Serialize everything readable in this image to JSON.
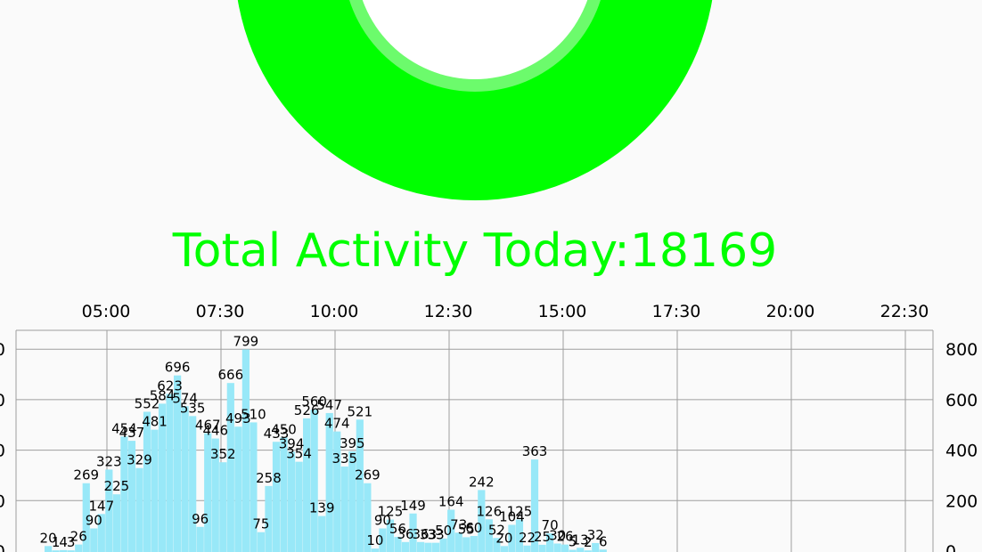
{
  "theme": {
    "accent": "#00ff00",
    "ring_inner": "#6cfb6c",
    "bar_color": "#98e8f8",
    "grid_color": "#9e9e9e"
  },
  "activity": {
    "label": "Total Activity Today:",
    "total": "18169"
  },
  "chart_data": {
    "type": "bar",
    "title": "",
    "xlabel": "",
    "ylabel": "",
    "x_axis_position": "top",
    "y_axes": "left and right",
    "grid": true,
    "ylim": [
      0,
      850
    ],
    "y_ticks": [
      0,
      200,
      400,
      600,
      800
    ],
    "x_ticks": [
      "05:00",
      "07:30",
      "10:00",
      "12:30",
      "15:00",
      "17:30",
      "20:00",
      "22:30"
    ],
    "interval_minutes": 15,
    "values": [
      20,
      1,
      4,
      3,
      26,
      269,
      90,
      147,
      323,
      225,
      454,
      437,
      329,
      552,
      481,
      584,
      623,
      696,
      574,
      535,
      96,
      467,
      446,
      352,
      666,
      493,
      799,
      510,
      75,
      258,
      433,
      450,
      394,
      354,
      526,
      560,
      139,
      547,
      474,
      335,
      395,
      521,
      269,
      10,
      90,
      125,
      56,
      36,
      149,
      36,
      33,
      33,
      50,
      164,
      73,
      55,
      60,
      242,
      126,
      52,
      20,
      104,
      125,
      22,
      363,
      25,
      70,
      30,
      26,
      5,
      13,
      2,
      32,
      6
    ],
    "labels": [
      "20",
      "1",
      "4",
      "3",
      "26",
      "269",
      "90",
      "147",
      "323",
      "225",
      "454",
      "437",
      "329",
      "552",
      "481",
      "584",
      "623",
      "696",
      "574",
      "535",
      "96",
      "467",
      "446",
      "352",
      "666",
      "493",
      "799",
      "510",
      "75",
      "258",
      "433",
      "450",
      "394",
      "354",
      "526",
      "560",
      "139",
      "547",
      "474",
      "335",
      "395",
      "521",
      "269",
      "10",
      "90",
      "125",
      "56",
      "36",
      "149",
      "36",
      "33",
      "33",
      "50",
      "164",
      "73",
      "55",
      "60",
      "242",
      "126",
      "52",
      "20",
      "104",
      "125",
      "22",
      "363",
      "25",
      "70",
      "30",
      "26",
      "5",
      "13",
      "2",
      "32",
      "6"
    ]
  }
}
